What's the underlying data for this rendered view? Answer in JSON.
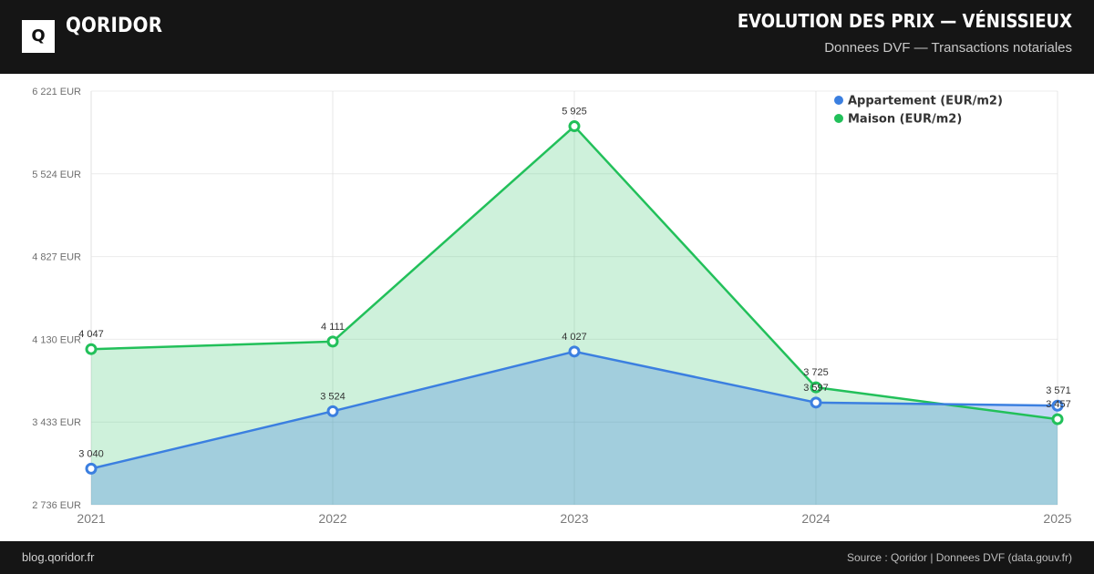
{
  "header": {
    "logo_letter": "Q",
    "brand": "QORIDOR",
    "title": "EVOLUTION DES PRIX — VÉNISSIEUX",
    "subtitle": "Donnees DVF — Transactions notariales"
  },
  "footer": {
    "site": "blog.qoridor.fr",
    "source": "Source : Qoridor | Donnees DVF (data.gouv.fr)"
  },
  "colors": {
    "appartement": "#3b7fe0",
    "maison": "#22c05a",
    "header_bg": "#151515"
  },
  "chart_data": {
    "type": "area",
    "title": "EVOLUTION DES PRIX — VÉNISSIEUX",
    "x": [
      "2021",
      "2022",
      "2023",
      "2024",
      "2025"
    ],
    "y_ticks": [
      "6 221 EUR",
      "5 524 EUR",
      "4 827 EUR",
      "4 130 EUR",
      "3 433 EUR",
      "2 736 EUR"
    ],
    "ylim": [
      2736,
      6221
    ],
    "grid": true,
    "legend_position": "top-right",
    "series": [
      {
        "name": "Appartement (EUR/m2)",
        "values": [
          3040,
          3524,
          4027,
          3597,
          3571
        ],
        "labels": [
          "3 040",
          "3 524",
          "4 027",
          "3 597",
          "3 571"
        ]
      },
      {
        "name": "Maison (EUR/m2)",
        "values": [
          4047,
          4111,
          5925,
          3725,
          3457
        ],
        "labels": [
          "4 047",
          "4 111",
          "5 925",
          "3 725",
          "3 457"
        ]
      }
    ]
  }
}
